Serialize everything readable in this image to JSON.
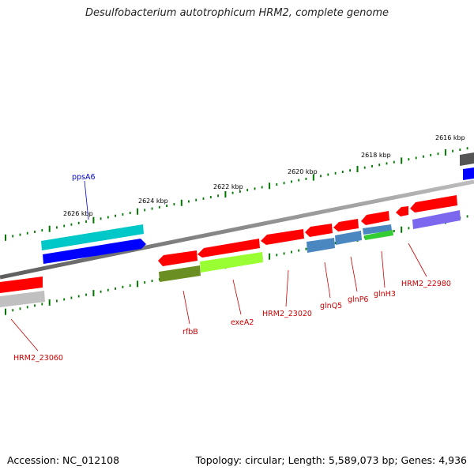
{
  "title": "Desulfobacterium autotrophicum HRM2, complete genome",
  "footer": {
    "accession": "Accession: NC_012108",
    "topology": "Topology: circular; Length: 5,589,073 bp; Genes: 4,936"
  },
  "scale_labels": [
    "2616 kbp",
    "2618 kbp",
    "2620 kbp",
    "2622 kbp",
    "2624 kbp",
    "2626 kbp"
  ],
  "gene_labels": {
    "ppsA6": "ppsA6",
    "rfbB": "rfbB",
    "exeA2": "exeA2",
    "HRM2_23020": "HRM2_23020",
    "glnQ5": "glnQ5",
    "glnP6": "glnP6",
    "glnH3": "glnH3",
    "HRM2_22980": "HRM2_22980",
    "HRM2_23060": "HRM2_23060"
  },
  "colors": {
    "backbone": "#808080",
    "gene_red": "#ff0000",
    "cyan": "#00c8c8",
    "blue": "#0000ff",
    "olive": "#6b8e23",
    "lime": "#99ff33",
    "steelblue": "#4a86c0",
    "green": "#33cc33",
    "purple": "#7b68ee",
    "gray": "#c0c0c0",
    "darkgray": "#555555",
    "tick_green": "#007700",
    "label_red": "#cc0000",
    "label_blue": "#0000cc"
  }
}
